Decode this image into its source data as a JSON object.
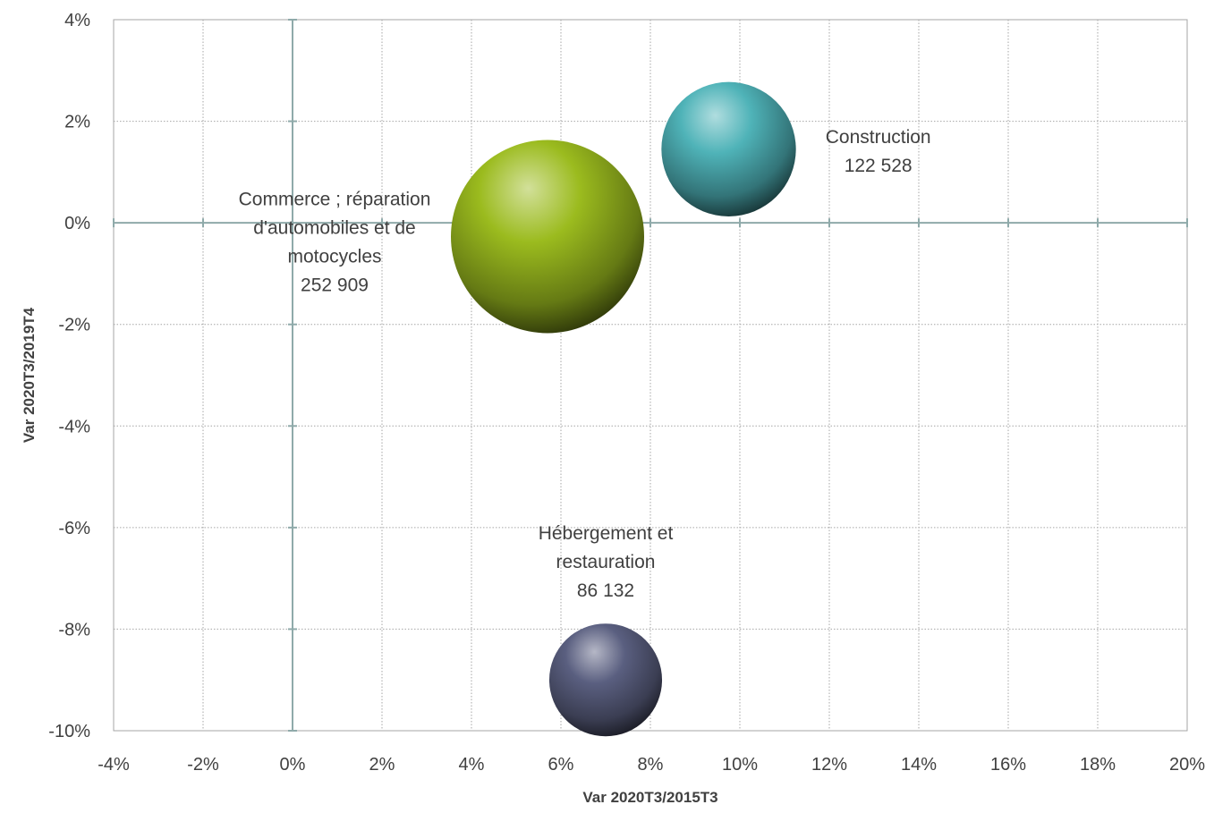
{
  "chart_data": {
    "type": "scatter",
    "subtype": "bubble",
    "title": "",
    "xlabel": "Var 2020T3/2015T3",
    "ylabel": "Var 2020T3/2019T4",
    "xlim": [
      -0.04,
      0.2
    ],
    "ylim": [
      -0.1,
      0.04
    ],
    "xticks": [
      -0.04,
      -0.02,
      0,
      0.02,
      0.04,
      0.06,
      0.08,
      0.1,
      0.12,
      0.14,
      0.16,
      0.18,
      0.2
    ],
    "xtick_labels": [
      "-4%",
      "-2%",
      "0%",
      "2%",
      "4%",
      "6%",
      "8%",
      "10%",
      "12%",
      "14%",
      "16%",
      "18%",
      "20%"
    ],
    "yticks": [
      -0.1,
      -0.08,
      -0.06,
      -0.04,
      -0.02,
      0,
      0.02,
      0.04
    ],
    "ytick_labels": [
      "-10%",
      "-8%",
      "-6%",
      "-4%",
      "-2%",
      "0%",
      "2%",
      "4%"
    ],
    "grid": true,
    "legend": "none",
    "points": [
      {
        "name_lines": [
          "Commerce ; réparation",
          "d'automobiles et de",
          "motocycles"
        ],
        "value_label": "252 909",
        "x": 0.057,
        "y": -0.0027,
        "size": 252909,
        "color": "#9bbb1e",
        "label_position": "left"
      },
      {
        "name_lines": [
          "Construction"
        ],
        "value_label": "122 528",
        "x": 0.0975,
        "y": 0.0145,
        "size": 122528,
        "color": "#4fb3b8",
        "label_position": "right"
      },
      {
        "name_lines": [
          "Hébergement et",
          "restauration"
        ],
        "value_label": "86 132",
        "x": 0.07,
        "y": -0.09,
        "size": 86132,
        "color": "#5a5f80",
        "label_position": "above"
      }
    ]
  }
}
